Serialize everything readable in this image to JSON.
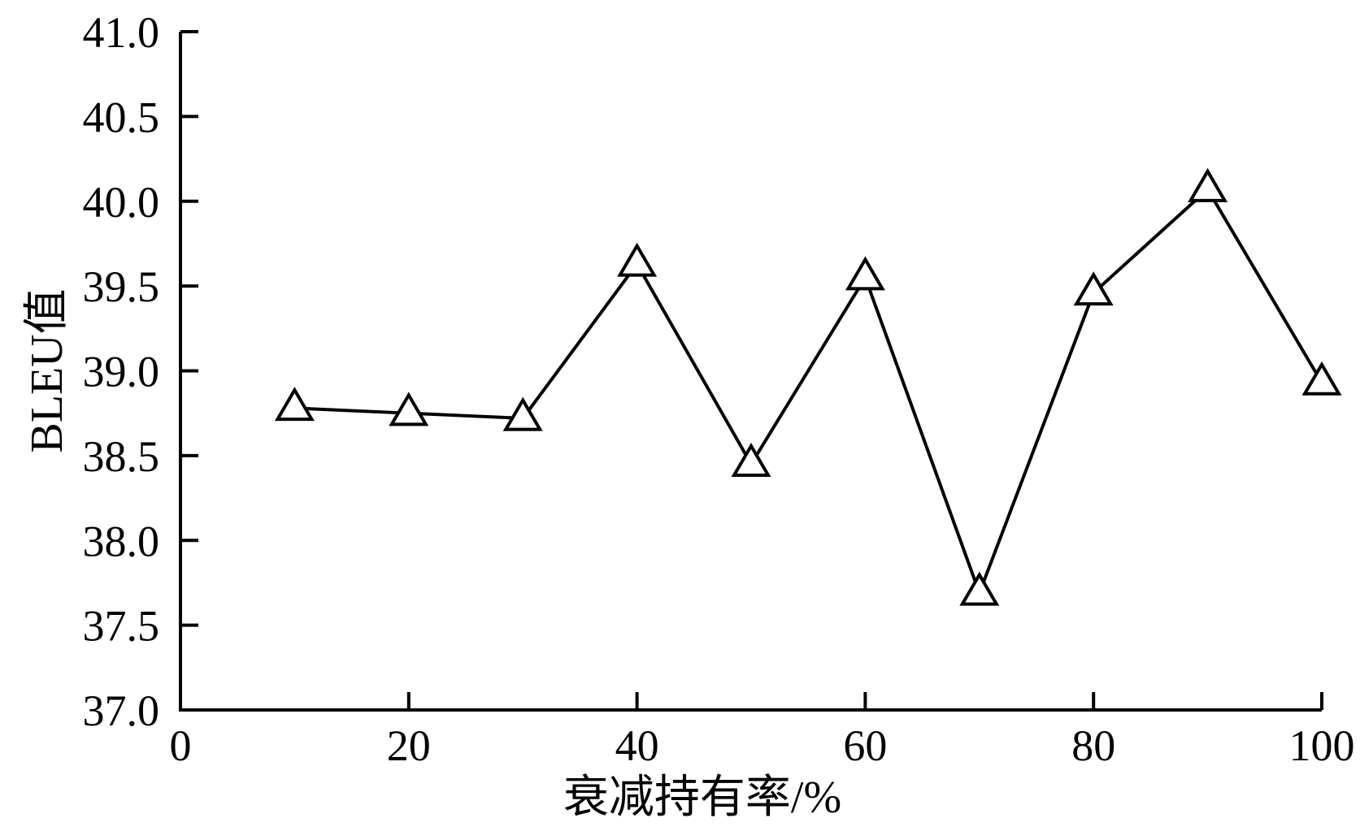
{
  "chart_data": {
    "type": "line",
    "title": "",
    "xlabel": "衰减持有率/%",
    "ylabel": "BLEU值",
    "xlim": [
      0,
      100
    ],
    "ylim": [
      37.0,
      41.0
    ],
    "xticks": [
      0,
      20,
      40,
      60,
      80,
      100
    ],
    "xtick_labels": [
      "0",
      "20",
      "40",
      "60",
      "80",
      "100"
    ],
    "yticks": [
      37.0,
      37.5,
      38.0,
      38.5,
      39.0,
      39.5,
      40.0,
      40.5,
      41.0
    ],
    "ytick_labels": [
      "37.0",
      "37.5",
      "38.0",
      "38.5",
      "39.0",
      "39.5",
      "40.0",
      "40.5",
      "41.0"
    ],
    "grid": false,
    "marker": "open-triangle",
    "series": [
      {
        "x": [
          10,
          20,
          30,
          40,
          50,
          60,
          70,
          80,
          90,
          100
        ],
        "values": [
          38.78,
          38.75,
          38.72,
          39.63,
          38.45,
          39.55,
          37.69,
          39.46,
          40.07,
          38.93
        ]
      }
    ],
    "colors": {
      "line": "#000000",
      "marker_fill": "#ffffff"
    }
  }
}
